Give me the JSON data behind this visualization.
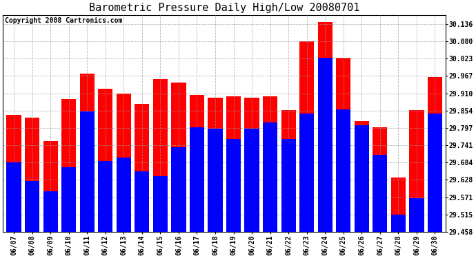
{
  "title": "Barometric Pressure Daily High/Low 20080701",
  "copyright": "Copyright 2008 Cartronics.com",
  "dates": [
    "06/07",
    "06/08",
    "06/09",
    "06/10",
    "06/11",
    "06/12",
    "06/13",
    "06/14",
    "06/15",
    "06/16",
    "06/17",
    "06/18",
    "06/19",
    "06/20",
    "06/21",
    "06/22",
    "06/23",
    "06/24",
    "06/25",
    "06/26",
    "06/27",
    "06/28",
    "06/29",
    "06/30"
  ],
  "highs": [
    29.84,
    29.83,
    29.755,
    29.89,
    29.975,
    29.925,
    29.91,
    29.875,
    29.955,
    29.945,
    29.905,
    29.895,
    29.9,
    29.895,
    29.9,
    29.855,
    30.08,
    30.142,
    30.025,
    29.82,
    29.8,
    29.635,
    29.855,
    29.962
  ],
  "lows": [
    29.685,
    29.625,
    29.59,
    29.67,
    29.85,
    29.69,
    29.7,
    29.655,
    29.64,
    29.735,
    29.8,
    29.795,
    29.76,
    29.795,
    29.815,
    29.76,
    29.845,
    30.025,
    29.858,
    29.805,
    29.71,
    29.515,
    29.568,
    29.845
  ],
  "ylim": [
    29.458,
    30.165
  ],
  "yticks": [
    29.458,
    29.515,
    29.571,
    29.628,
    29.684,
    29.741,
    29.797,
    29.854,
    29.91,
    29.967,
    30.023,
    30.08,
    30.136
  ],
  "high_color": "#ff0000",
  "low_color": "#0000ff",
  "bg_color": "#ffffff",
  "grid_color": "#999999",
  "bar_width": 0.8,
  "title_fontsize": 11,
  "tick_fontsize": 7,
  "copyright_fontsize": 7,
  "figwidth": 6.9,
  "figheight": 3.75,
  "ymin": 29.458
}
